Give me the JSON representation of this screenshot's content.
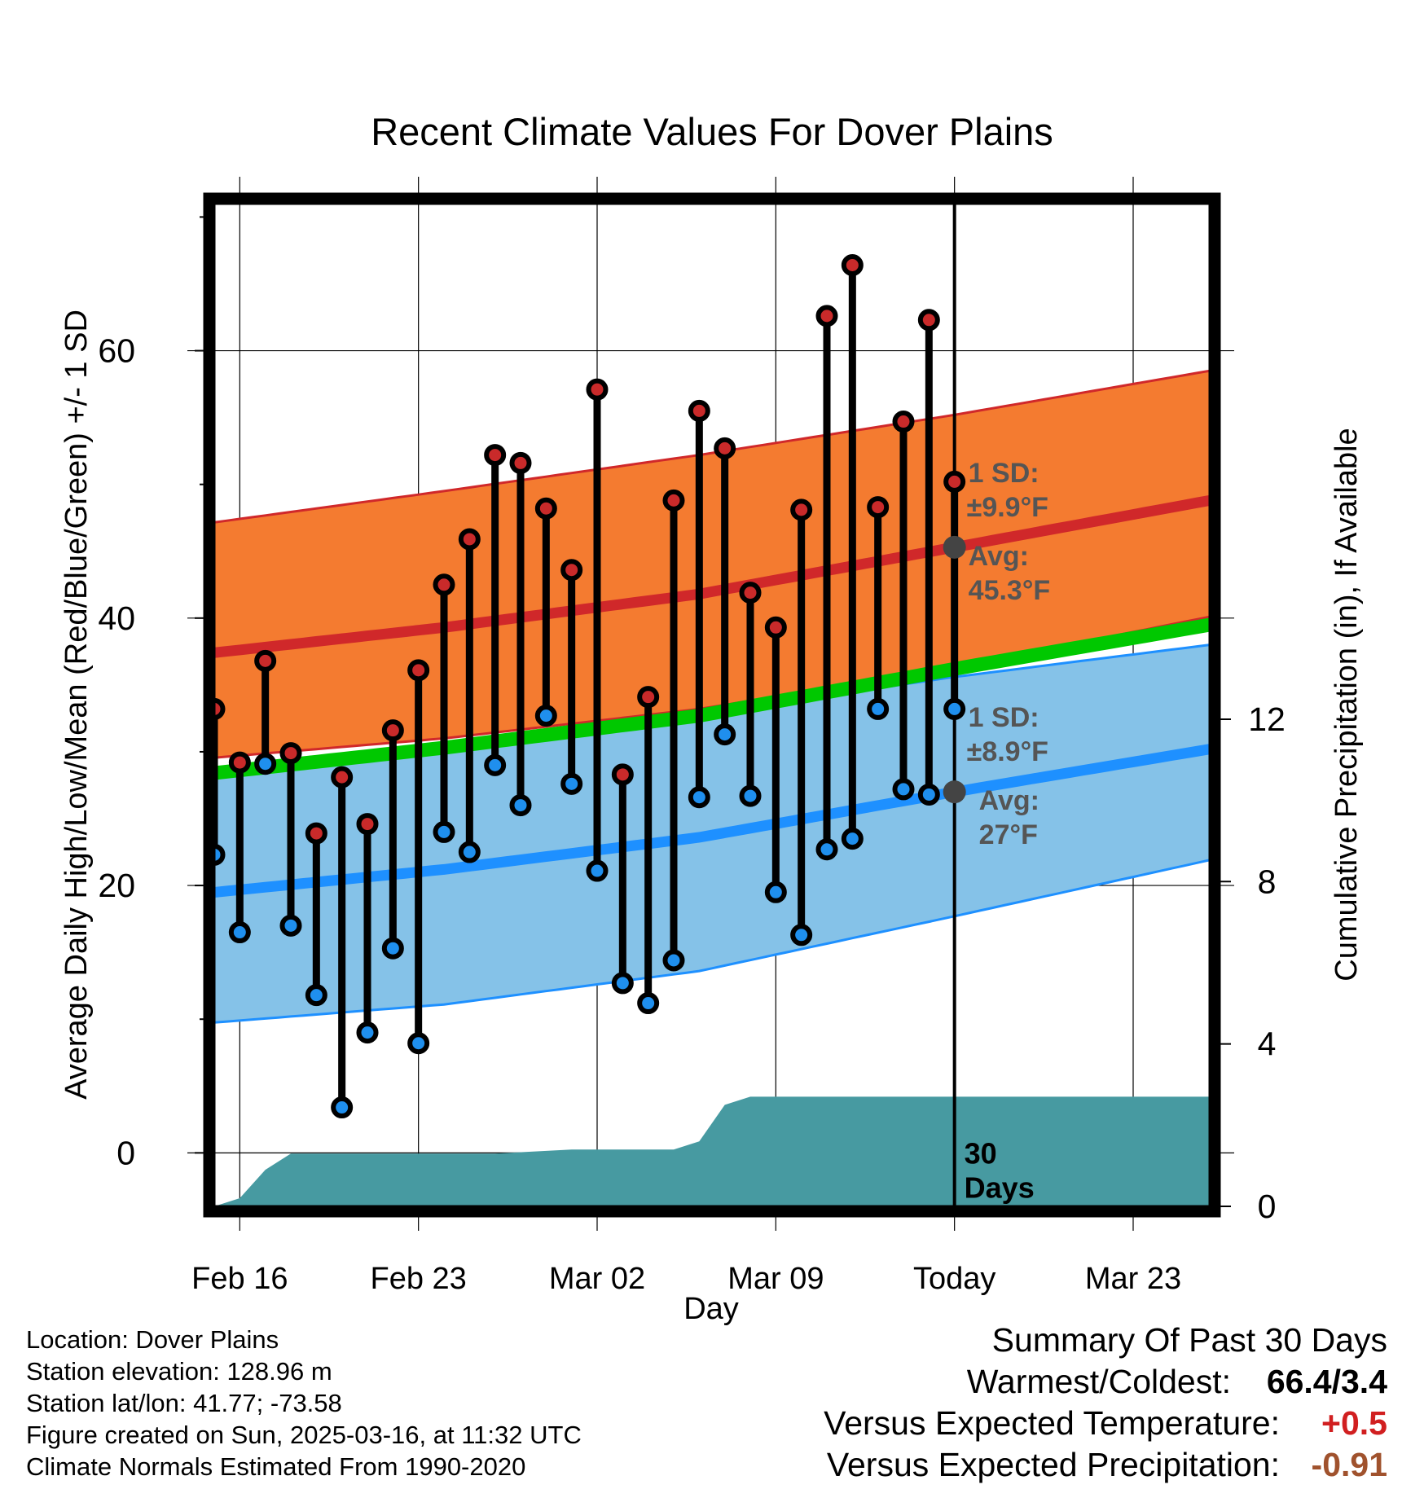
{
  "chart_data": {
    "type": "line",
    "title": "Recent Climate Values For Dover Plains",
    "xlabel": "Day",
    "ylabel_left": "Average Daily High/Low/Mean (Red/Blue/Green) +/- 1 SD",
    "ylabel_right": "Cumulative Precipitation (in), If Available",
    "x_ticks": [
      "Feb 16",
      "Feb 23",
      "Mar 02",
      "Mar 09",
      "Today",
      "Mar 23"
    ],
    "y_ticks_left": [
      "0",
      "20",
      "40",
      "60"
    ],
    "y_ticks_right": [
      "0",
      "4",
      "8",
      "12"
    ],
    "ylim_left": [
      -4,
      71
    ],
    "ylim_right": [
      0,
      24.7
    ],
    "x_days": [
      -29,
      10
    ],
    "today_label": [
      "30",
      "Days"
    ],
    "daily_high": [
      33.2,
      29.2,
      36.8,
      29.9,
      23.9,
      28.1,
      24.6,
      31.6,
      36.1,
      42.5,
      45.9,
      52.2,
      51.6,
      48.2,
      43.6,
      57.1,
      28.3,
      34.1,
      48.8,
      55.5,
      52.7,
      41.9,
      39.3,
      48.1,
      62.6,
      66.4,
      48.3,
      54.7,
      62.3,
      50.2
    ],
    "daily_low": [
      22.3,
      16.5,
      29.1,
      17.0,
      11.8,
      3.4,
      9.0,
      15.3,
      8.2,
      24.0,
      22.5,
      29.0,
      26.0,
      32.7,
      27.6,
      21.1,
      12.7,
      11.2,
      14.4,
      26.6,
      31.3,
      26.7,
      19.5,
      16.3,
      22.7,
      23.5,
      33.2,
      27.2,
      26.8,
      33.2
    ],
    "normal_high": {
      "x": [
        -30,
        -20,
        -10,
        0,
        10
      ],
      "values": [
        37.2,
        39.3,
        41.8,
        45.3,
        48.8
      ]
    },
    "normal_low": {
      "x": [
        -30,
        -20,
        -10,
        0,
        10
      ],
      "values": [
        19.3,
        21.2,
        23.6,
        27.0,
        30.2
      ]
    },
    "normal_mean": {
      "x": [
        -30,
        -20,
        -10,
        0,
        10
      ],
      "values": [
        28.2,
        30.3,
        32.7,
        36.2,
        39.5
      ]
    },
    "high_sd_band": {
      "x": [
        -30,
        -20,
        -10,
        0,
        10
      ],
      "upper": [
        46.9,
        49.5,
        52.2,
        55.2,
        58.5
      ],
      "lower": [
        29.4,
        31.0,
        33.2,
        36.3,
        40.1
      ]
    },
    "low_sd_band": {
      "x": [
        -30,
        -20,
        -10,
        0,
        10
      ],
      "upper": [
        28.6,
        30.7,
        32.8,
        35.6,
        38.0
      ],
      "lower": [
        9.6,
        11.1,
        13.6,
        17.7,
        21.9
      ]
    },
    "precip_cumulative": {
      "x": [
        -30,
        -29,
        -28,
        -27,
        -26,
        -20,
        -18,
        -15,
        -12,
        -11,
        -10,
        -9,
        -8,
        10
      ],
      "values": [
        0.0,
        0.0,
        0.2,
        0.9,
        1.3,
        1.3,
        1.3,
        1.4,
        1.4,
        1.4,
        1.6,
        2.5,
        2.7,
        2.7
      ]
    },
    "annotations": {
      "high_sd": [
        "1 SD:",
        "±9.9°F"
      ],
      "high_avg": [
        "Avg:",
        "45.3°F"
      ],
      "low_sd": [
        "1 SD:",
        "±8.9°F"
      ],
      "low_avg": [
        "Avg:",
        "27°F"
      ]
    },
    "colors": {
      "high_band": "#f47b30",
      "high_line": "#d0282a",
      "low_band": "#85c2e8",
      "low_line": "#1e90ff",
      "mean_line": "#00c800",
      "precip": "#479aa1",
      "high_marker": "#c92a2a",
      "low_marker": "#1f8fee",
      "annotation": "#555555",
      "positive": "#d11f20",
      "negative": "#a0522d"
    }
  },
  "station_info": [
    "Location: Dover Plains",
    "Station elevation: 128.96 m",
    "Station lat/lon: 41.77; -73.58",
    "Figure created on Sun, 2025-03-16, at 11:32 UTC",
    "Climate Normals Estimated From 1990-2020"
  ],
  "summary": {
    "title": "Summary Of Past 30 Days",
    "warmest_coldest_label": "Warmest/Coldest:",
    "warmest_coldest_value": "66.4/3.4",
    "temp_label": "Versus Expected Temperature:",
    "temp_value": "+0.5",
    "precip_label": "Versus Expected Precipitation:",
    "precip_value": "-0.91"
  }
}
